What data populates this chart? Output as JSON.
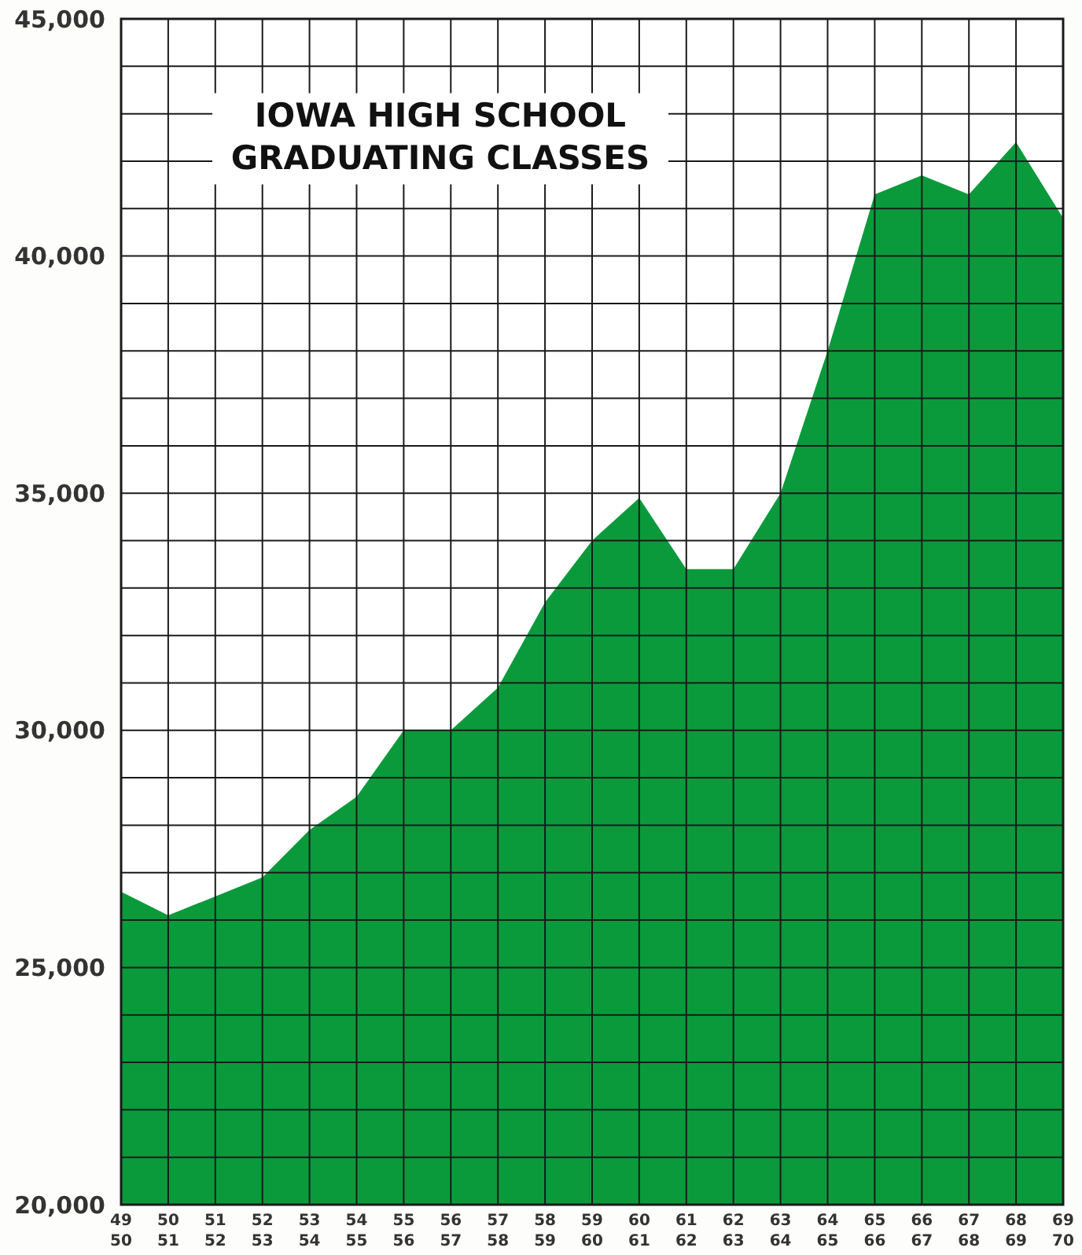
{
  "chart_data": {
    "type": "area",
    "title": "IOWA HIGH SCHOOL\nGRADUATING CLASSES",
    "categories": [
      "49\n50",
      "50\n51",
      "51\n52",
      "52\n53",
      "53\n54",
      "54\n55",
      "55\n56",
      "56\n57",
      "57\n58",
      "58\n59",
      "59\n60",
      "60\n61",
      "61\n62",
      "62\n63",
      "63\n64",
      "64\n65",
      "65\n66",
      "66\n67",
      "67\n68",
      "68\n69",
      "69\n70"
    ],
    "values": [
      26600,
      26100,
      26500,
      26900,
      27900,
      28600,
      30000,
      30000,
      30900,
      32700,
      34000,
      34900,
      33400,
      33400,
      35000,
      38000,
      41300,
      41700,
      41300,
      42400,
      40800
    ],
    "color": "#0a9a3c",
    "ylim": [
      20000,
      45000
    ],
    "yticks": [
      {
        "value": 20000,
        "label": "20,000"
      },
      {
        "value": 21000,
        "label": null
      },
      {
        "value": 22000,
        "label": null
      },
      {
        "value": 23000,
        "label": null
      },
      {
        "value": 24000,
        "label": null
      },
      {
        "value": 25000,
        "label": "25,000"
      },
      {
        "value": 26000,
        "label": null
      },
      {
        "value": 27000,
        "label": null
      },
      {
        "value": 28000,
        "label": null
      },
      {
        "value": 29000,
        "label": null
      },
      {
        "value": 30000,
        "label": "30,000"
      },
      {
        "value": 31000,
        "label": null
      },
      {
        "value": 32000,
        "label": null
      },
      {
        "value": 33000,
        "label": null
      },
      {
        "value": 34000,
        "label": null
      },
      {
        "value": 35000,
        "label": "35,000"
      },
      {
        "value": 36000,
        "label": null
      },
      {
        "value": 37000,
        "label": null
      },
      {
        "value": 38000,
        "label": null
      },
      {
        "value": 39000,
        "label": null
      },
      {
        "value": 40000,
        "label": "40,000"
      },
      {
        "value": 41000,
        "label": null
      },
      {
        "value": 42000,
        "label": null
      },
      {
        "value": 43000,
        "label": null
      },
      {
        "value": 44000,
        "label": null
      },
      {
        "value": 45000,
        "label": "45,000"
      }
    ],
    "grid": true
  }
}
